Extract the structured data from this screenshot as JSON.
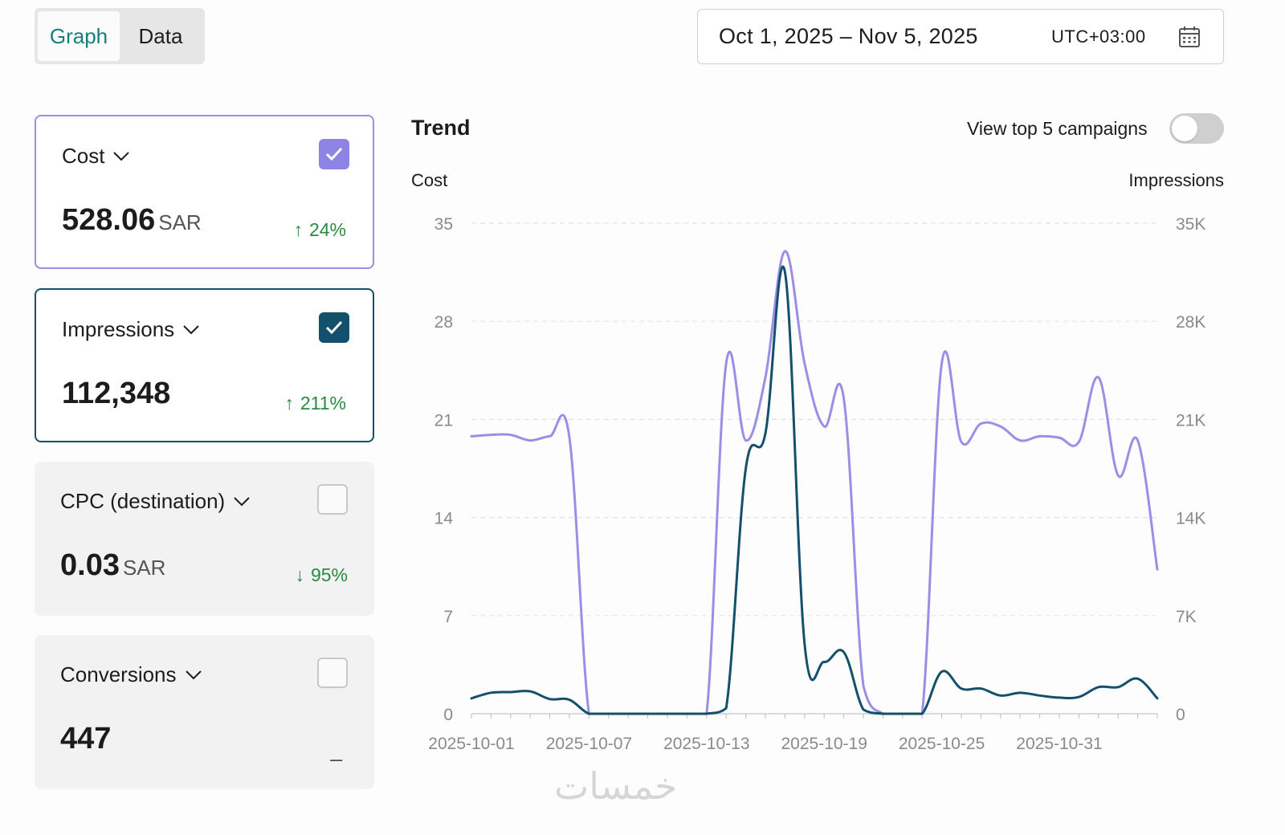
{
  "tabs": {
    "graph": "Graph",
    "data": "Data",
    "active": "graph"
  },
  "date_range": {
    "range": "Oct 1, 2025 – Nov 5, 2025",
    "timezone": "UTC+03:00"
  },
  "metrics": [
    {
      "title": "Cost",
      "value": "528.06",
      "unit": "SAR",
      "change": "24%",
      "direction": "up",
      "checked": true,
      "color": "#8d84e6"
    },
    {
      "title": "Impressions",
      "value": "112,348",
      "unit": "",
      "change": "211%",
      "direction": "up",
      "checked": true,
      "color": "#13506c"
    },
    {
      "title": "CPC (destination)",
      "value": "0.03",
      "unit": "SAR",
      "change": "95%",
      "direction": "down",
      "checked": false
    },
    {
      "title": "Conversions",
      "value": "447",
      "unit": "",
      "change": "_",
      "direction": "none",
      "checked": false
    }
  ],
  "trend": {
    "title": "Trend",
    "toggle_label": "View top 5 campaigns",
    "toggle_on": false,
    "left_axis_title": "Cost",
    "right_axis_title": "Impressions"
  },
  "chart_data": {
    "type": "line",
    "x": [
      "2025-10-01",
      "2025-10-02",
      "2025-10-03",
      "2025-10-04",
      "2025-10-05",
      "2025-10-06",
      "2025-10-07",
      "2025-10-08",
      "2025-10-09",
      "2025-10-10",
      "2025-10-11",
      "2025-10-12",
      "2025-10-13",
      "2025-10-14",
      "2025-10-15",
      "2025-10-16",
      "2025-10-17",
      "2025-10-18",
      "2025-10-19",
      "2025-10-20",
      "2025-10-21",
      "2025-10-22",
      "2025-10-23",
      "2025-10-24",
      "2025-10-25",
      "2025-10-26",
      "2025-10-27",
      "2025-10-28",
      "2025-10-29",
      "2025-10-30",
      "2025-10-31",
      "2025-11-01",
      "2025-11-02",
      "2025-11-03",
      "2025-11-04",
      "2025-11-05"
    ],
    "xticks": [
      "2025-10-01",
      "2025-10-07",
      "2025-10-13",
      "2025-10-19",
      "2025-10-25",
      "2025-10-31"
    ],
    "series": [
      {
        "name": "Cost",
        "axis": "left",
        "color": "#9a8fe6",
        "values": [
          19.8,
          19.9,
          19.9,
          19.5,
          19.8,
          19.7,
          0,
          0,
          0,
          0,
          0,
          0,
          0,
          25,
          19.5,
          24,
          33,
          25,
          20.5,
          22.5,
          2,
          0,
          0,
          0,
          25,
          19.4,
          20.7,
          20.5,
          19.5,
          19.8,
          19.7,
          19.4,
          24,
          17,
          19.5,
          10.3
        ]
      },
      {
        "name": "Impressions",
        "axis": "right",
        "color": "#13506c",
        "values": [
          1100,
          1500,
          1550,
          1600,
          1050,
          1000,
          0,
          0,
          0,
          0,
          0,
          0,
          0,
          400,
          17500,
          20000,
          31500,
          5000,
          3700,
          4400,
          300,
          0,
          0,
          0,
          3000,
          1800,
          1800,
          1300,
          1500,
          1300,
          1150,
          1200,
          1900,
          1900,
          2500,
          1100
        ]
      }
    ],
    "left_ticks": [
      "0",
      "7",
      "14",
      "21",
      "28",
      "35"
    ],
    "right_ticks": [
      "0",
      "7K",
      "14K",
      "21K",
      "28K",
      "35K"
    ],
    "ylim_left": [
      0,
      35
    ],
    "ylim_right": [
      0,
      35000
    ],
    "grid": true
  },
  "watermark": "خمسات"
}
